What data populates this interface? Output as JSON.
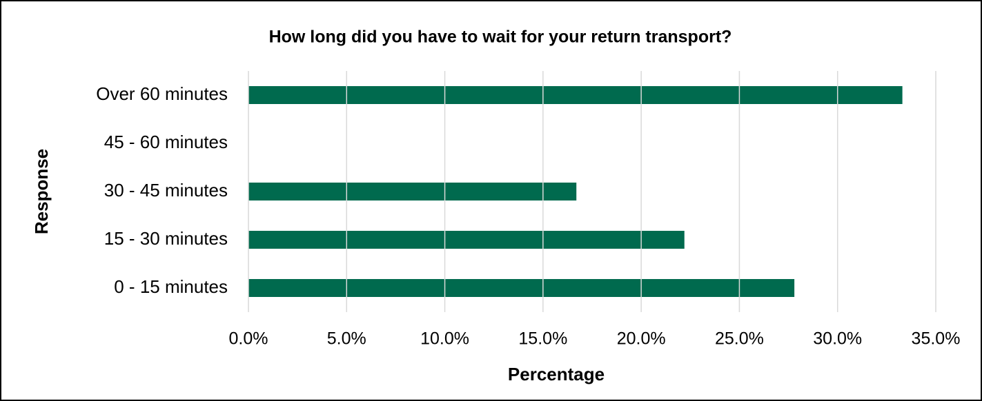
{
  "chart_data": {
    "type": "bar",
    "orientation": "horizontal",
    "title": "How long did you have to wait for your return transport?",
    "x_label": "Percentage",
    "y_label": "Response",
    "categories": [
      "Over 60 minutes",
      "45 - 60 minutes",
      "30 - 45 minutes",
      "15 - 30 minutes",
      "0 - 15 minutes"
    ],
    "values": [
      33.3,
      0,
      16.7,
      22.2,
      27.8
    ],
    "color": "#006a4e",
    "xlim": [
      0,
      35
    ],
    "xticks": [
      {
        "value": 0,
        "label": "0.0%"
      },
      {
        "value": 5,
        "label": "5.0%"
      },
      {
        "value": 10,
        "label": "10.0%"
      },
      {
        "value": 15,
        "label": "15.0%"
      },
      {
        "value": 20,
        "label": "20.0%"
      },
      {
        "value": 25,
        "label": "25.0%"
      },
      {
        "value": 30,
        "label": "30.0%"
      },
      {
        "value": 35,
        "label": "35.0%"
      }
    ],
    "grid": true
  }
}
